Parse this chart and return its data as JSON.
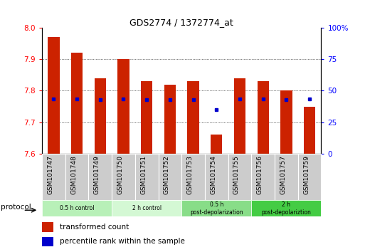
{
  "title": "GDS2774 / 1372774_at",
  "samples": [
    "GSM101747",
    "GSM101748",
    "GSM101749",
    "GSM101750",
    "GSM101751",
    "GSM101752",
    "GSM101753",
    "GSM101754",
    "GSM101755",
    "GSM101756",
    "GSM101757",
    "GSM101759"
  ],
  "bar_tops": [
    7.97,
    7.92,
    7.84,
    7.9,
    7.83,
    7.82,
    7.83,
    7.66,
    7.84,
    7.83,
    7.8,
    7.75
  ],
  "bar_bottom": 7.6,
  "blue_dot_values": [
    7.775,
    7.773,
    7.772,
    7.773,
    7.772,
    7.772,
    7.772,
    7.74,
    7.773,
    7.773,
    7.772,
    7.773
  ],
  "ylim": [
    7.6,
    8.0
  ],
  "yticks_left": [
    7.6,
    7.7,
    7.8,
    7.9,
    8
  ],
  "yticks_right_vals": [
    0,
    25,
    50,
    75,
    100
  ],
  "yticks_right_labels": [
    "0",
    "25",
    "50",
    "75",
    "100%"
  ],
  "bar_color": "#cc2200",
  "dot_color": "#0000cc",
  "groups": [
    {
      "label": "0.5 h control",
      "start": 0,
      "end": 3,
      "color": "#b8f0b8"
    },
    {
      "label": "2 h control",
      "start": 3,
      "end": 6,
      "color": "#d4f8d4"
    },
    {
      "label": "0.5 h post-depolarization",
      "start": 6,
      "end": 9,
      "color": "#88dd88"
    },
    {
      "label": "2 h post-depolariztion",
      "start": 9,
      "end": 12,
      "color": "#44cc44"
    }
  ],
  "protocol_label": "protocol",
  "legend_items": [
    {
      "label": "transformed count",
      "color": "#cc2200"
    },
    {
      "label": "percentile rank within the sample",
      "color": "#0000cc"
    }
  ],
  "bar_width": 0.5,
  "xtick_bg_color": "#cccccc",
  "grid_ticks": [
    7.7,
    7.8,
    7.9
  ]
}
